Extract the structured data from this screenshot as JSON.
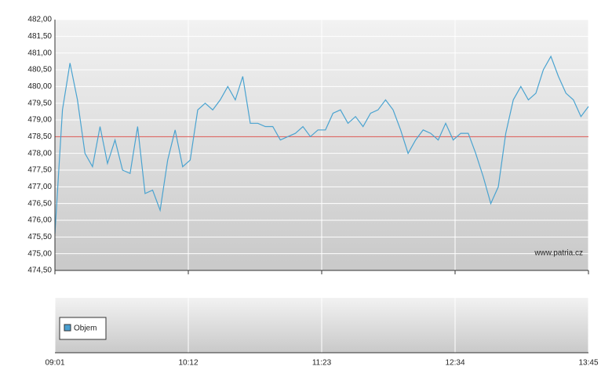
{
  "chart_data": {
    "type": "line",
    "watermark": "www.patria.cz",
    "x": [
      "09:01",
      "09:05",
      "09:09",
      "09:13",
      "09:17",
      "09:21",
      "09:25",
      "09:29",
      "09:33",
      "09:37",
      "09:41",
      "09:45",
      "09:49",
      "09:53",
      "09:57",
      "10:01",
      "10:05",
      "10:09",
      "10:13",
      "10:17",
      "10:21",
      "10:25",
      "10:29",
      "10:33",
      "10:37",
      "10:41",
      "10:45",
      "10:49",
      "10:53",
      "10:57",
      "11:01",
      "11:05",
      "11:09",
      "11:13",
      "11:17",
      "11:21",
      "11:25",
      "11:29",
      "11:33",
      "11:37",
      "11:41",
      "11:45",
      "11:49",
      "11:53",
      "11:57",
      "12:01",
      "12:05",
      "12:09",
      "12:13",
      "12:17",
      "12:21",
      "12:25",
      "12:29",
      "12:33",
      "12:37",
      "12:41",
      "12:45",
      "12:49",
      "12:53",
      "12:57",
      "13:01",
      "13:05",
      "13:09",
      "13:13",
      "13:17",
      "13:21",
      "13:25",
      "13:29",
      "13:33",
      "13:37",
      "13:41",
      "13:45"
    ],
    "series": [
      {
        "color": "#4aa3d0",
        "values": [
          475.6,
          479.3,
          480.7,
          479.6,
          478.0,
          477.6,
          478.8,
          477.7,
          478.4,
          477.5,
          477.4,
          478.8,
          476.8,
          476.9,
          476.3,
          477.8,
          478.7,
          477.6,
          477.8,
          479.3,
          479.5,
          479.3,
          479.6,
          480.0,
          479.6,
          480.3,
          478.9,
          478.9,
          478.8,
          478.8,
          478.4,
          478.5,
          478.6,
          478.8,
          478.5,
          478.7,
          478.7,
          479.2,
          479.3,
          478.9,
          479.1,
          478.8,
          479.2,
          479.3,
          479.6,
          479.3,
          478.7,
          478.0,
          478.4,
          478.7,
          478.6,
          478.4,
          478.9,
          478.4,
          478.6,
          478.6,
          478.0,
          477.3,
          476.5,
          477.0,
          478.6,
          479.6,
          480.0,
          479.6,
          479.8,
          480.5,
          480.9,
          480.3,
          479.8,
          479.6,
          479.1,
          479.4
        ]
      }
    ],
    "reference_line": {
      "value": 478.5,
      "color": "#d9534f"
    },
    "ylim": [
      474.5,
      482.0
    ],
    "yticks": [
      {
        "value": 474.5,
        "label": "474,50"
      },
      {
        "value": 475.0,
        "label": "475,00"
      },
      {
        "value": 475.5,
        "label": "475,50"
      },
      {
        "value": 476.0,
        "label": "476,00"
      },
      {
        "value": 476.5,
        "label": "476,50"
      },
      {
        "value": 477.0,
        "label": "477,00"
      },
      {
        "value": 477.5,
        "label": "477,50"
      },
      {
        "value": 478.0,
        "label": "478,00"
      },
      {
        "value": 478.5,
        "label": "478,50"
      },
      {
        "value": 479.0,
        "label": "479,00"
      },
      {
        "value": 479.5,
        "label": "479,50"
      },
      {
        "value": 480.0,
        "label": "480,00"
      },
      {
        "value": 480.5,
        "label": "480,50"
      },
      {
        "value": 481.0,
        "label": "481,00"
      },
      {
        "value": 481.5,
        "label": "481,50"
      },
      {
        "value": 482.0,
        "label": "482,00"
      }
    ],
    "xlim": [
      "09:01",
      "13:45"
    ],
    "xticks": [
      "09:01",
      "10:12",
      "11:23",
      "12:34",
      "13:45"
    ],
    "grid": true,
    "volume_panel": {
      "legend": "Objem",
      "color": "#4a9fd0"
    }
  }
}
